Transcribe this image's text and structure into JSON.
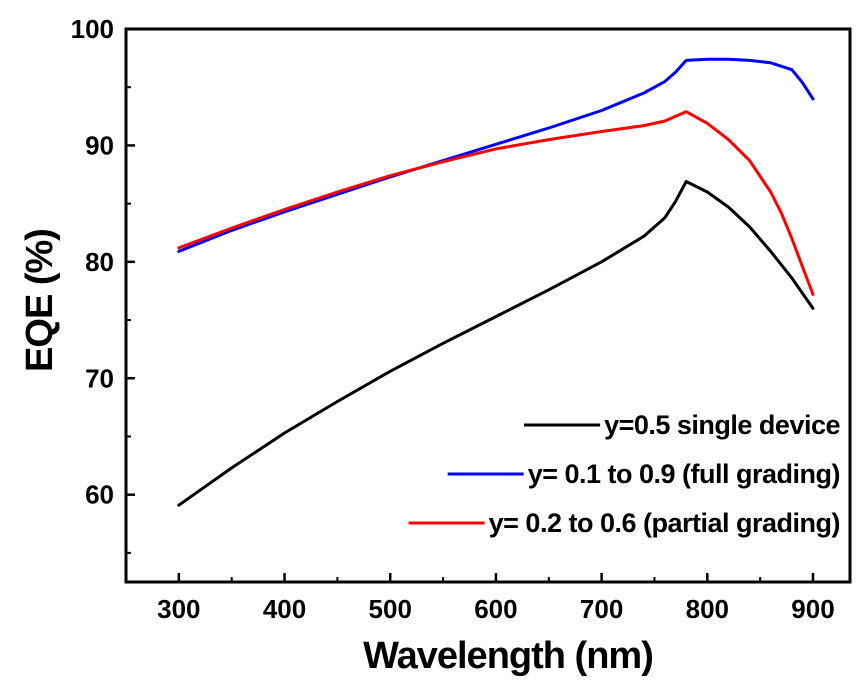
{
  "chart_data": {
    "type": "line",
    "xlabel": "Wavelength (nm)",
    "ylabel": "EQE (%)",
    "xlim": [
      250,
      935
    ],
    "ylim": [
      52.5,
      100
    ],
    "xticks": [
      300,
      400,
      500,
      600,
      700,
      800,
      900
    ],
    "xtick_labels": [
      "300",
      "400",
      "500",
      "600",
      "700",
      "800",
      "900"
    ],
    "yticks": [
      60,
      70,
      80,
      90,
      100
    ],
    "ytick_labels": [
      "60",
      "70",
      "80",
      "90",
      "100"
    ],
    "grid": false,
    "legend_position": "bottom-right",
    "series": [
      {
        "name": "y=0.5 single device",
        "color": "#000000",
        "x": [
          300,
          350,
          400,
          450,
          500,
          550,
          600,
          650,
          700,
          740,
          760,
          770,
          780,
          800,
          820,
          840,
          860,
          880,
          900
        ],
        "y": [
          59.1,
          62.3,
          65.3,
          68.0,
          70.6,
          73.0,
          75.3,
          77.6,
          80.0,
          82.2,
          83.8,
          85.2,
          86.9,
          86.0,
          84.7,
          83.0,
          80.9,
          78.6,
          76.0
        ]
      },
      {
        "name": "y= 0.1 to 0.9 (full grading)",
        "color": "#0000ff",
        "x": [
          300,
          350,
          400,
          450,
          500,
          550,
          600,
          650,
          700,
          740,
          760,
          770,
          780,
          800,
          820,
          840,
          860,
          880,
          890,
          900
        ],
        "y": [
          80.9,
          82.7,
          84.3,
          85.8,
          87.3,
          88.7,
          90.1,
          91.5,
          93.0,
          94.5,
          95.5,
          96.3,
          97.3,
          97.4,
          97.4,
          97.3,
          97.1,
          96.5,
          95.4,
          94.0
        ]
      },
      {
        "name": "y= 0.2 to 0.6 (partial grading)",
        "color": "#ff0000",
        "x": [
          300,
          350,
          400,
          450,
          500,
          550,
          600,
          650,
          700,
          740,
          760,
          770,
          780,
          800,
          820,
          840,
          860,
          870,
          880,
          890,
          900
        ],
        "y": [
          81.2,
          82.9,
          84.5,
          86.0,
          87.4,
          88.6,
          89.7,
          90.5,
          91.2,
          91.7,
          92.1,
          92.5,
          92.9,
          91.9,
          90.5,
          88.7,
          86.0,
          84.2,
          82.0,
          79.6,
          77.2
        ]
      }
    ]
  }
}
